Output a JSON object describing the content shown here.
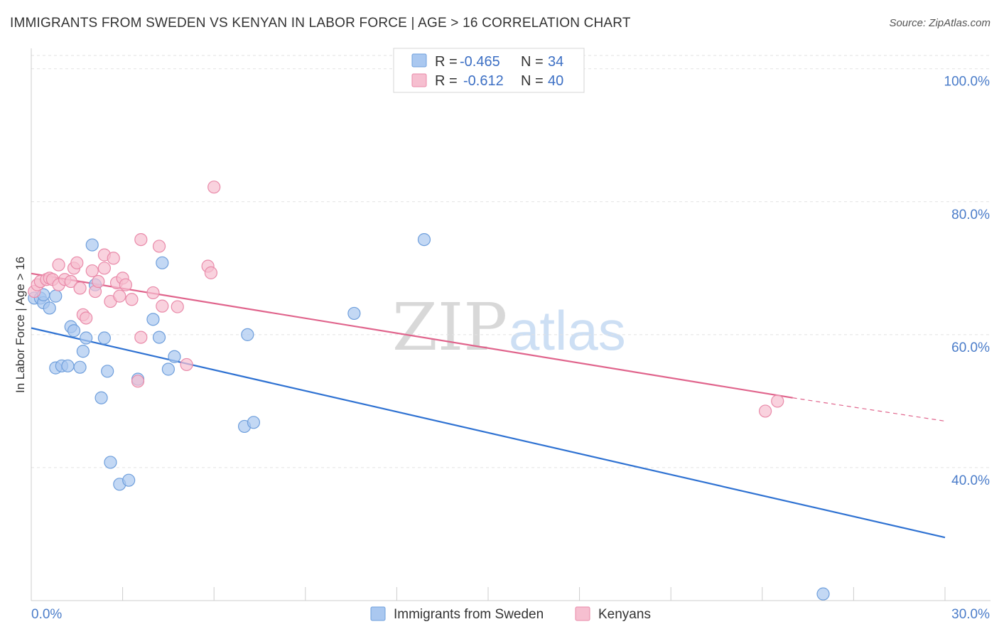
{
  "title": "IMMIGRANTS FROM SWEDEN VS KENYAN IN LABOR FORCE | AGE > 16 CORRELATION CHART",
  "source": "Source: ZipAtlas.com",
  "watermark": {
    "zip": "ZIP",
    "atlas": "atlas"
  },
  "colors": {
    "sweden_fill": "#aac8f0",
    "sweden_stroke": "#6f9fdc",
    "sweden_line": "#2f72d2",
    "kenyan_fill": "#f6bfd0",
    "kenyan_stroke": "#e98aa9",
    "kenyan_line": "#e0648c",
    "grid": "#e2e2e2",
    "tick_label": "#4a7cc9"
  },
  "legend": {
    "r_label": "R =",
    "n_label": "N =",
    "rows": [
      {
        "r": "-0.465",
        "n": "34",
        "series": "sweden"
      },
      {
        "r": "-0.612",
        "n": "40",
        "series": "kenyan"
      }
    ]
  },
  "chart_data": {
    "type": "scatter",
    "title": "IMMIGRANTS FROM SWEDEN VS KENYAN IN LABOR FORCE | AGE > 16 CORRELATION CHART",
    "xlabel": "",
    "ylabel": "In Labor Force | Age > 16",
    "xlim": [
      0,
      30
    ],
    "ylim": [
      20,
      102
    ],
    "x_tick_labels": [
      {
        "value": 0,
        "label": "0.0%"
      },
      {
        "value": 30,
        "label": "30.0%"
      }
    ],
    "y_tick_labels": [
      {
        "value": 100,
        "label": "100.0%"
      },
      {
        "value": 80,
        "label": "80.0%"
      },
      {
        "value": 60,
        "label": "60.0%"
      },
      {
        "value": 40,
        "label": "40.0%"
      }
    ],
    "x_minor_ticks": [
      3,
      6,
      9,
      12,
      15,
      18,
      21,
      24,
      27,
      30
    ],
    "series": [
      {
        "name": "Immigrants from Sweden",
        "key": "sweden",
        "points": [
          [
            0.1,
            65.5
          ],
          [
            0.3,
            65.5
          ],
          [
            0.4,
            64.8
          ],
          [
            0.6,
            64.0
          ],
          [
            0.8,
            65.8
          ],
          [
            0.8,
            55.0
          ],
          [
            1.0,
            55.3
          ],
          [
            1.2,
            55.3
          ],
          [
            1.6,
            55.1
          ],
          [
            1.3,
            61.2
          ],
          [
            1.4,
            60.6
          ],
          [
            1.7,
            57.5
          ],
          [
            1.8,
            59.5
          ],
          [
            2.0,
            73.5
          ],
          [
            2.3,
            50.5
          ],
          [
            2.4,
            59.5
          ],
          [
            2.5,
            54.5
          ],
          [
            2.6,
            40.8
          ],
          [
            2.9,
            37.5
          ],
          [
            3.2,
            38.1
          ],
          [
            3.5,
            53.3
          ],
          [
            4.0,
            62.3
          ],
          [
            4.2,
            59.6
          ],
          [
            4.3,
            70.8
          ],
          [
            4.5,
            54.8
          ],
          [
            4.7,
            56.7
          ],
          [
            2.1,
            67.5
          ],
          [
            7.0,
            46.2
          ],
          [
            7.3,
            46.8
          ],
          [
            7.1,
            60.0
          ],
          [
            10.6,
            63.2
          ],
          [
            12.9,
            74.3
          ],
          [
            26.0,
            21.0
          ],
          [
            0.4,
            66.0
          ]
        ],
        "trend": {
          "x0": 0,
          "y0": 61.0,
          "x1": 30,
          "y1": 29.5
        }
      },
      {
        "name": "Kenyans",
        "key": "kenyan",
        "points": [
          [
            0.1,
            66.5
          ],
          [
            0.2,
            67.5
          ],
          [
            0.3,
            68.0
          ],
          [
            0.5,
            68.3
          ],
          [
            0.6,
            68.5
          ],
          [
            0.7,
            68.3
          ],
          [
            0.9,
            67.5
          ],
          [
            0.9,
            70.5
          ],
          [
            1.1,
            68.3
          ],
          [
            1.3,
            68.0
          ],
          [
            1.4,
            70.0
          ],
          [
            1.5,
            70.8
          ],
          [
            1.6,
            67.0
          ],
          [
            1.7,
            63.0
          ],
          [
            1.8,
            62.5
          ],
          [
            2.0,
            69.6
          ],
          [
            2.1,
            66.5
          ],
          [
            2.2,
            68.0
          ],
          [
            2.4,
            70.0
          ],
          [
            2.4,
            72.0
          ],
          [
            2.6,
            65.0
          ],
          [
            2.7,
            71.5
          ],
          [
            2.8,
            67.8
          ],
          [
            2.9,
            65.8
          ],
          [
            3.0,
            68.5
          ],
          [
            3.1,
            67.5
          ],
          [
            3.3,
            65.3
          ],
          [
            3.6,
            74.3
          ],
          [
            3.6,
            59.6
          ],
          [
            3.5,
            53.0
          ],
          [
            4.0,
            66.3
          ],
          [
            4.2,
            73.3
          ],
          [
            4.3,
            64.3
          ],
          [
            4.8,
            64.2
          ],
          [
            5.1,
            55.5
          ],
          [
            5.8,
            70.3
          ],
          [
            5.9,
            69.3
          ],
          [
            6.0,
            82.2
          ],
          [
            24.1,
            48.5
          ],
          [
            24.5,
            50.0
          ]
        ],
        "trend": {
          "x0": 0,
          "y0": 69.2,
          "x1": 25.0,
          "y1": 50.5
        },
        "trend_dashed": {
          "x0": 25.0,
          "y0": 50.5,
          "x1": 30,
          "y1": 47.0
        }
      }
    ]
  },
  "bottom_legend": [
    {
      "label": "Immigrants from Sweden",
      "series": "sweden"
    },
    {
      "label": "Kenyans",
      "series": "kenyan"
    }
  ]
}
